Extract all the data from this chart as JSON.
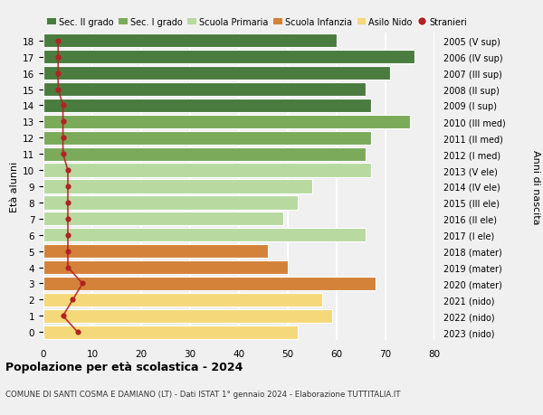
{
  "ages": [
    18,
    17,
    16,
    15,
    14,
    13,
    12,
    11,
    10,
    9,
    8,
    7,
    6,
    5,
    4,
    3,
    2,
    1,
    0
  ],
  "right_labels": [
    "2005 (V sup)",
    "2006 (IV sup)",
    "2007 (III sup)",
    "2008 (II sup)",
    "2009 (I sup)",
    "2010 (III med)",
    "2011 (II med)",
    "2012 (I med)",
    "2013 (V ele)",
    "2014 (IV ele)",
    "2015 (III ele)",
    "2016 (II ele)",
    "2017 (I ele)",
    "2018 (mater)",
    "2019 (mater)",
    "2020 (mater)",
    "2021 (nido)",
    "2022 (nido)",
    "2023 (nido)"
  ],
  "bar_values": [
    60,
    76,
    71,
    66,
    67,
    75,
    67,
    66,
    67,
    55,
    52,
    49,
    66,
    46,
    50,
    68,
    57,
    59,
    52
  ],
  "bar_colors": [
    "#4a7c3f",
    "#4a7c3f",
    "#4a7c3f",
    "#4a7c3f",
    "#4a7c3f",
    "#7aaa5a",
    "#7aaa5a",
    "#7aaa5a",
    "#b8d9a0",
    "#b8d9a0",
    "#b8d9a0",
    "#b8d9a0",
    "#b8d9a0",
    "#d4823a",
    "#d4823a",
    "#d4823a",
    "#f5d87a",
    "#f5d87a",
    "#f5d87a"
  ],
  "stranieri_values": [
    3,
    3,
    3,
    3,
    4,
    4,
    4,
    4,
    5,
    5,
    5,
    5,
    5,
    5,
    5,
    8,
    6,
    4,
    7
  ],
  "stranieri_color": "#b22222",
  "legend_labels": [
    "Sec. II grado",
    "Sec. I grado",
    "Scuola Primaria",
    "Scuola Infanzia",
    "Asilo Nido",
    "Stranieri"
  ],
  "legend_colors": [
    "#4a7c3f",
    "#7aaa5a",
    "#b8d9a0",
    "#d4823a",
    "#f5d87a",
    "#b22222"
  ],
  "ylabel_left": "Età alunni",
  "ylabel_right": "Anni di nascita",
  "xlim": [
    0,
    80
  ],
  "xticks": [
    0,
    10,
    20,
    30,
    40,
    50,
    60,
    70,
    80
  ],
  "title": "Popolazione per età scolastica - 2024",
  "subtitle": "COMUNE DI SANTI COSMA E DAMIANO (LT) - Dati ISTAT 1° gennaio 2024 - Elaborazione TUTTITALIA.IT",
  "bg_color": "#f0f0f0",
  "bar_height": 0.85,
  "grid_color": "#ffffff"
}
